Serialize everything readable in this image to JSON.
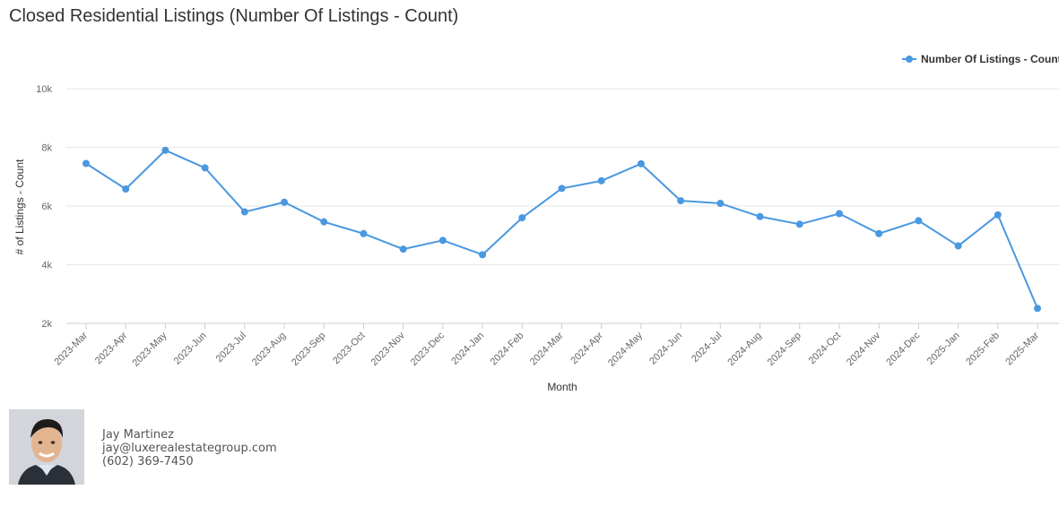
{
  "chart_data": {
    "type": "line",
    "title": "Closed Residential Listings (Number Of Listings - Count)",
    "xlabel": "Month",
    "ylabel": "# of Listings - Count",
    "ylim": [
      2000,
      10000
    ],
    "yticks": [
      {
        "value": 2000,
        "label": "2k"
      },
      {
        "value": 4000,
        "label": "4k"
      },
      {
        "value": 6000,
        "label": "6k"
      },
      {
        "value": 8000,
        "label": "8k"
      },
      {
        "value": 10000,
        "label": "10k"
      }
    ],
    "grid": true,
    "legend_position": "top-right",
    "categories": [
      "2023-Mar",
      "2023-Apr",
      "2023-May",
      "2023-Jun",
      "2023-Jul",
      "2023-Aug",
      "2023-Sep",
      "2023-Oct",
      "2023-Nov",
      "2023-Dec",
      "2024-Jan",
      "2024-Feb",
      "2024-Mar",
      "2024-Apr",
      "2024-May",
      "2024-Jun",
      "2024-Jul",
      "2024-Aug",
      "2024-Sep",
      "2024-Oct",
      "2024-Nov",
      "2024-Dec",
      "2025-Jan",
      "2025-Feb",
      "2025-Mar"
    ],
    "series": [
      {
        "name": "Number Of Listings - Count",
        "color": "#4a98e0",
        "values": [
          7450,
          6580,
          7900,
          7300,
          5800,
          6130,
          5460,
          5060,
          4530,
          4830,
          4340,
          5600,
          6600,
          6860,
          7440,
          6180,
          6090,
          5640,
          5380,
          5740,
          5060,
          5500,
          4640,
          5700,
          2510
        ]
      }
    ]
  },
  "agent": {
    "name": "Jay Martinez",
    "email": "jay@luxerealestategroup.com",
    "phone": "(602) 369-7450"
  }
}
